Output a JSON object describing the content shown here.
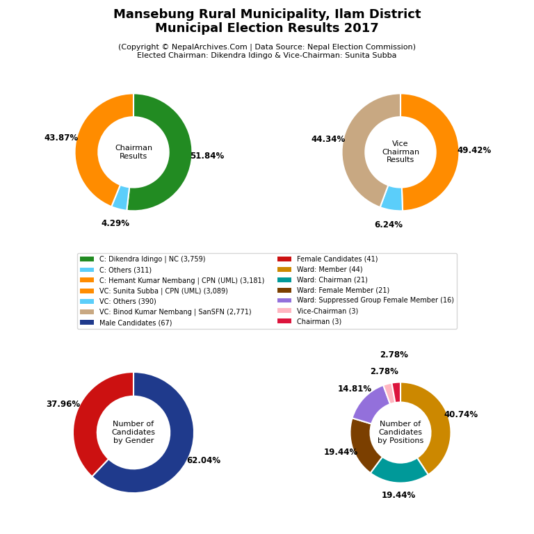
{
  "title": "Mansebung Rural Municipality, Ilam District\nMunicipal Election Results 2017",
  "subtitle": "(Copyright © NepalArchives.Com | Data Source: Nepal Election Commission)\nElected Chairman: Dikendra Idingo & Vice-Chairman: Sunita Subba",
  "legend": "center",
  "chart_data": [
    {
      "type": "pie",
      "title": "Chairman\nResults",
      "categories": [
        "C: Dikendra Idingo | NC (3,759)",
        "C: Others (311)",
        "C: Hemant Kumar Nembang | CPN (UML) (3,181)"
      ],
      "values": [
        51.84,
        4.29,
        43.87
      ],
      "value_labels": [
        "51.84%",
        "4.29%",
        "43.87%"
      ],
      "colors": [
        "#228B22",
        "#5BCEFA",
        "#FF8C00"
      ],
      "data_labels": true
    },
    {
      "type": "pie",
      "title": "Vice\nChairman\nResults",
      "categories": [
        "VC: Sunita Subba | CPN (UML) (3,089)",
        "VC: Others (390)",
        "VC: Binod Kumar Nembang | SanSFN (2,771)"
      ],
      "values": [
        49.42,
        6.24,
        44.34
      ],
      "value_labels": [
        "49.42%",
        "6.24%",
        "44.34%"
      ],
      "colors": [
        "#FF8C00",
        "#5BCEFA",
        "#C8A882"
      ],
      "data_labels": true
    },
    {
      "type": "pie",
      "title": "Number of\nCandidates\nby Gender",
      "categories": [
        "Male Candidates (67)",
        "Female Candidates (41)"
      ],
      "values": [
        62.04,
        37.96
      ],
      "value_labels": [
        "62.04%",
        "37.96%"
      ],
      "colors": [
        "#1F3A8C",
        "#CC1111"
      ],
      "data_labels": true
    },
    {
      "type": "pie",
      "title": "Number of\nCandidates\nby Positions",
      "categories": [
        "Ward: Member (44)",
        "Ward: Chairman (21)",
        "Ward: Female Member (21)",
        "Ward: Suppressed Group Female Member (16)",
        "Vice-Chairman (3)",
        "Chairman (3)"
      ],
      "values": [
        40.74,
        19.44,
        19.44,
        14.81,
        2.78,
        2.78
      ],
      "value_labels": [
        "40.74%",
        "19.44%",
        "19.44%",
        "14.81%",
        "2.78%",
        "2.78%"
      ],
      "colors": [
        "#CC8800",
        "#009999",
        "#7B3F00",
        "#9370DB",
        "#FFB6C1",
        "#DC143C"
      ],
      "data_labels": true
    }
  ]
}
